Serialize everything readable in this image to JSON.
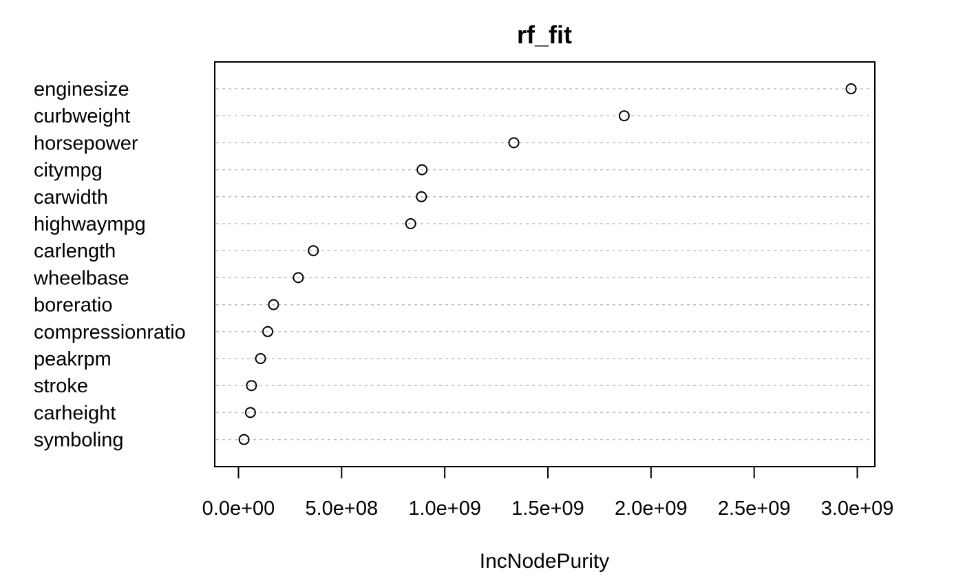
{
  "chart_data": {
    "type": "scatter",
    "title": "rf_fit",
    "xlabel": "IncNodePurity",
    "ylabel": "",
    "xlim": [
      -115000000,
      3085000000
    ],
    "xticks": [
      0,
      500000000,
      1000000000,
      1500000000,
      2000000000,
      2500000000,
      3000000000
    ],
    "xtick_labels": [
      "0.0e+00",
      "5.0e+08",
      "1.0e+09",
      "1.5e+09",
      "2.0e+09",
      "2.5e+09",
      "3.0e+09"
    ],
    "grid": "horizontal-dashed",
    "categories": [
      "enginesize",
      "curbweight",
      "horsepower",
      "citympg",
      "carwidth",
      "highwaympg",
      "carlength",
      "wheelbase",
      "boreratio",
      "compressionratio",
      "peakrpm",
      "stroke",
      "carheight",
      "symboling"
    ],
    "values": [
      2970000000,
      1870000000,
      1335000000,
      890000000,
      887000000,
      835000000,
      363000000,
      290000000,
      170000000,
      142000000,
      107000000,
      63000000,
      58000000,
      27000000
    ]
  }
}
